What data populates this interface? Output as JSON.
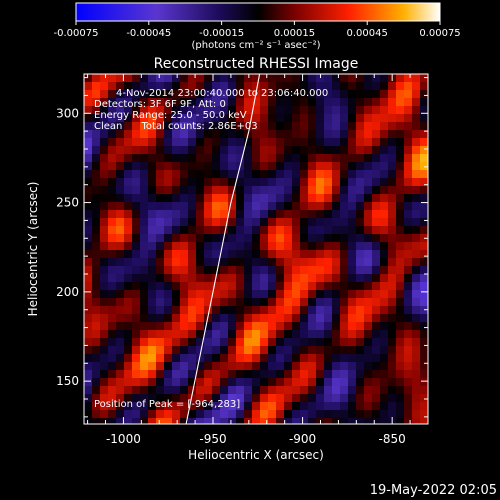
{
  "chart_data": {
    "type": "heatmap",
    "title": "Reconstructed RHESSI Image",
    "colorbar": {
      "ticks": [
        "-0.00075",
        "-0.00045",
        "-0.00015",
        "0.00015",
        "0.00045",
        "0.00075"
      ],
      "range": [
        -0.00075,
        0.00075
      ],
      "unit_label": "(photons cm⁻² s⁻¹ asec⁻²)"
    },
    "annotations": {
      "time_range": "4-Nov-2014 23:00:40.000 to 23:06:40.000",
      "detectors": "Detectors: 3F 6F 9F, Att: 0",
      "energy_range": "Energy Range: 25.0 - 50.0 keV",
      "clean_counts": "Clean      Total counts: 2.86E+03",
      "peak": "Position of Peak = [-964,283]"
    },
    "xlabel": "Heliocentric X (arcsec)",
    "ylabel": "Heliocentric Y (arcsec)",
    "xlim": [
      -1022,
      -830
    ],
    "ylim": [
      126,
      322
    ],
    "xticks": [
      "-1000",
      "-950",
      "-900",
      "-850"
    ],
    "yticks": [
      "150",
      "200",
      "250",
      "300"
    ],
    "limb_curve": [
      [
        -965,
        126
      ],
      [
        -950,
        200
      ],
      [
        -940,
        250
      ],
      [
        -930,
        290
      ],
      [
        -924,
        322
      ]
    ],
    "grid": false
  },
  "footer": {
    "timestamp": "19-May-2022 02:05"
  }
}
